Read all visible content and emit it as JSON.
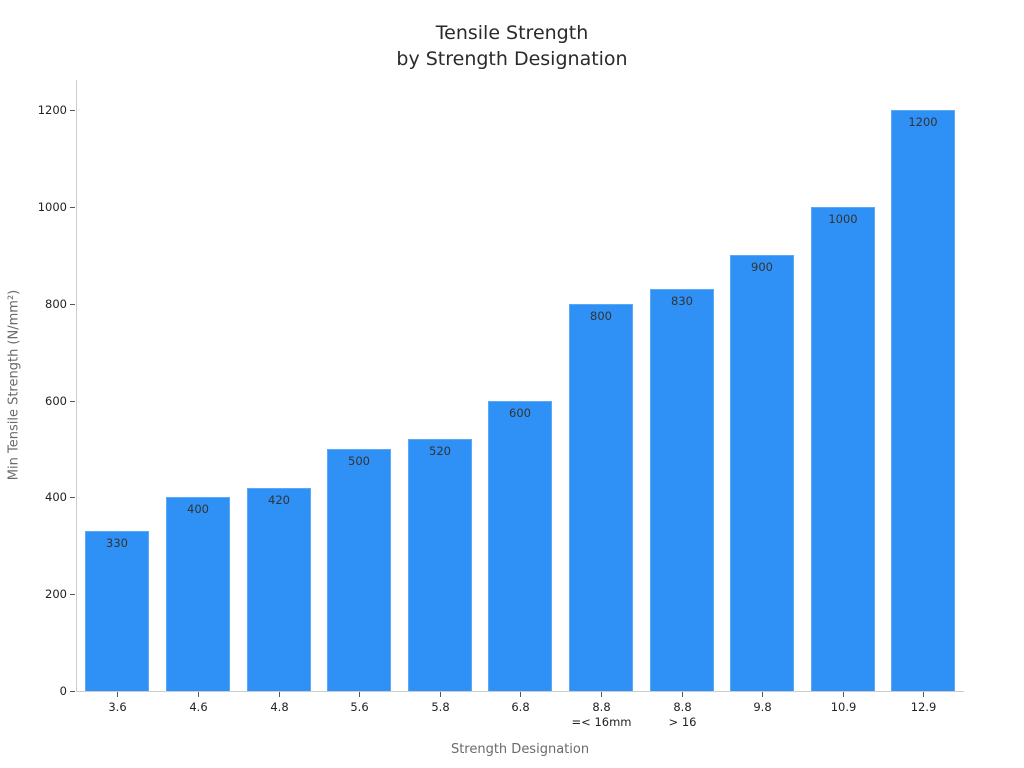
{
  "chart_data": {
    "type": "bar",
    "title": "Tensile Strength\nby Strength Designation",
    "title_lines": [
      "Tensile Strength",
      "by Strength Designation"
    ],
    "xlabel": "Strength Designation",
    "ylabel": "Min Tensile Strength (N/mm²)",
    "categories": [
      "3.6",
      "4.6",
      "4.8",
      "5.6",
      "5.8",
      "6.8",
      "8.8\n=< 16mm",
      "8.8\n> 16",
      "9.8",
      "10.9",
      "12.9"
    ],
    "category_lines": [
      [
        "3.6"
      ],
      [
        "4.6"
      ],
      [
        "4.8"
      ],
      [
        "5.6"
      ],
      [
        "5.8"
      ],
      [
        "6.8"
      ],
      [
        "8.8",
        "=< 16mm"
      ],
      [
        "8.8",
        "> 16"
      ],
      [
        "9.8"
      ],
      [
        "10.9"
      ],
      [
        "12.9"
      ]
    ],
    "values": [
      330,
      400,
      420,
      500,
      520,
      600,
      800,
      830,
      900,
      1000,
      1200
    ],
    "data_labels": [
      "330",
      "400",
      "420",
      "500",
      "520",
      "600",
      "800",
      "830",
      "900",
      "1000",
      "1200"
    ],
    "yticks": [
      0,
      200,
      400,
      600,
      800,
      1000,
      1200
    ],
    "ylim": [
      0,
      1260
    ],
    "grid": false,
    "legend": null,
    "bar_color": "#2f91f5"
  }
}
